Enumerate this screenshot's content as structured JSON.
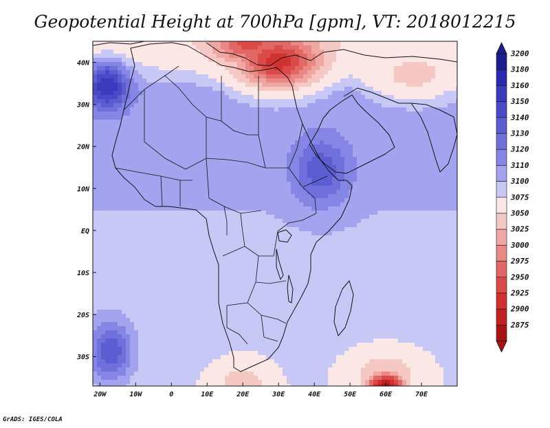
{
  "title": "Geopotential Height at 700hPa [gpm], VT: 2018012215",
  "credit": "GrADS: IGES/COLA",
  "map": {
    "lon_range": [
      -22,
      80
    ],
    "lat_range": [
      -37,
      45
    ],
    "lon_ticks": [
      "20W",
      "10W",
      "0",
      "10E",
      "20E",
      "30E",
      "40E",
      "50E",
      "60E",
      "70E"
    ],
    "lon_tick_values": [
      -20,
      -10,
      0,
      10,
      20,
      30,
      40,
      50,
      60,
      70
    ],
    "lat_ticks": [
      "40N",
      "30N",
      "20N",
      "10N",
      "EQ",
      "10S",
      "20S",
      "30S"
    ],
    "lat_tick_values": [
      40,
      30,
      20,
      10,
      0,
      -10,
      -20,
      -30
    ],
    "field_features": [
      {
        "kind": "low",
        "lon": 30,
        "lat": 40,
        "value": 2950,
        "spread_lon": 11,
        "spread_lat": 6
      },
      {
        "kind": "low",
        "lon": 22,
        "lat": 44,
        "value": 2990,
        "spread_lon": 10,
        "spread_lat": 5
      },
      {
        "kind": "low",
        "lon": 60,
        "lat": -37,
        "value": 2890,
        "spread_lon": 5,
        "spread_lat": 3
      },
      {
        "kind": "low",
        "lon": 60,
        "lat": -34,
        "value": 3060,
        "spread_lon": 9,
        "spread_lat": 5
      },
      {
        "kind": "low",
        "lon": 20,
        "lat": -37,
        "value": 3060,
        "spread_lon": 7,
        "spread_lat": 5
      },
      {
        "kind": "low",
        "lon": 68,
        "lat": 36,
        "value": 3070,
        "spread_lon": 12,
        "spread_lat": 5
      },
      {
        "kind": "high",
        "lon": -18,
        "lat": 35,
        "value": 3175,
        "spread_lon": 6,
        "spread_lat": 6
      },
      {
        "kind": "high",
        "lon": -17,
        "lat": -29,
        "value": 3160,
        "spread_lon": 6,
        "spread_lat": 7
      },
      {
        "kind": "high",
        "lon": 42,
        "lat": 14,
        "value": 3150,
        "spread_lon": 8,
        "spread_lat": 8
      }
    ]
  },
  "colorbar": {
    "levels": [
      "3200",
      "3180",
      "3160",
      "3150",
      "3140",
      "3130",
      "3120",
      "3110",
      "3100",
      "3075",
      "3050",
      "3025",
      "3000",
      "2975",
      "2950",
      "2925",
      "2900",
      "2875"
    ],
    "level_values": [
      3200,
      3180,
      3160,
      3150,
      3140,
      3130,
      3120,
      3110,
      3100,
      3075,
      3050,
      3025,
      3000,
      2975,
      2950,
      2925,
      2900,
      2875
    ],
    "colors": [
      "#1c1c8c",
      "#2a2ab0",
      "#3b3bbd",
      "#4a4ac9",
      "#5d5dd2",
      "#7070dc",
      "#8585e6",
      "#a3a3ef",
      "#c8c8f7",
      "#fbe8e6",
      "#f6c8c4",
      "#f0a7a2",
      "#e98884",
      "#e26866",
      "#da4a48",
      "#d13231",
      "#c22222",
      "#a81414"
    ]
  }
}
